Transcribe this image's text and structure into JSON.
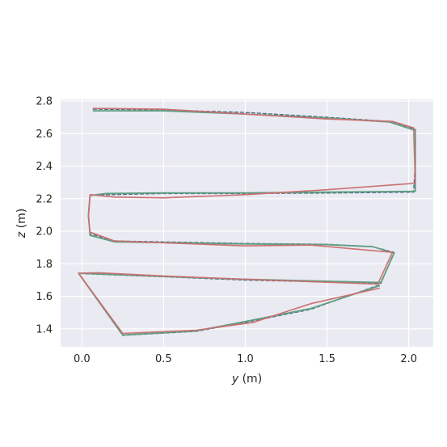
{
  "chart_data": {
    "type": "line",
    "title": "",
    "xlabel": "y (m)",
    "ylabel": "z (m)",
    "xlabel_var": "y",
    "xlabel_unit": " (m)",
    "ylabel_var": "z",
    "ylabel_unit": " (m)",
    "xlim": [
      -0.13,
      2.15
    ],
    "ylim": [
      1.29,
      2.81
    ],
    "xticks": [
      0.0,
      0.5,
      1.0,
      1.5,
      2.0
    ],
    "xtick_labels": [
      "0.0",
      "0.5",
      "1.0",
      "1.5",
      "2.0"
    ],
    "yticks": [
      1.4,
      1.6,
      1.8,
      2.0,
      2.2,
      2.4,
      2.6,
      2.8
    ],
    "ytick_labels": [
      "1.4",
      "1.6",
      "1.8",
      "2.0",
      "2.2",
      "2.4",
      "2.6",
      "2.8"
    ],
    "grid": true,
    "background": "#eaeaf2",
    "grid_color": "#ffffff",
    "series": [
      {
        "color": "#4a6f83",
        "dash": "4,3",
        "width": 1.4,
        "x": [
          0.07,
          0.5,
          1.0,
          1.5,
          1.88,
          2.04,
          2.04,
          2.03,
          1.5,
          1.0,
          0.5,
          0.05,
          0.04,
          0.05,
          0.2,
          1.0,
          1.5,
          1.78,
          1.91,
          1.83,
          1.0,
          0.5,
          -0.02,
          0.25,
          0.7,
          1.0,
          1.4,
          1.82
        ],
        "y": [
          2.75,
          2.745,
          2.73,
          2.7,
          2.675,
          2.625,
          2.43,
          2.24,
          2.235,
          2.232,
          2.232,
          2.222,
          2.1,
          1.985,
          1.94,
          1.925,
          1.92,
          1.905,
          1.87,
          1.68,
          1.7,
          1.72,
          1.74,
          1.36,
          1.385,
          1.44,
          1.52,
          1.67
        ]
      },
      {
        "color": "#5f9e82",
        "dash": "",
        "width": 1.8,
        "x": [
          0.07,
          0.5,
          1.0,
          1.5,
          1.88,
          2.04,
          2.04,
          2.04,
          1.5,
          1.0,
          0.5,
          0.15,
          0.05,
          0.04,
          0.05,
          0.2,
          1.0,
          1.5,
          1.78,
          1.91,
          1.83,
          1.0,
          0.5,
          -0.02,
          0.25,
          0.7,
          1.0,
          1.4,
          1.82
        ],
        "y": [
          2.74,
          2.74,
          2.72,
          2.695,
          2.672,
          2.62,
          2.42,
          2.245,
          2.24,
          2.236,
          2.236,
          2.232,
          2.22,
          2.1,
          1.975,
          1.935,
          1.922,
          1.918,
          1.905,
          1.865,
          1.685,
          1.705,
          1.722,
          1.742,
          1.362,
          1.388,
          1.445,
          1.525,
          1.665
        ]
      },
      {
        "color": "#cc7070",
        "dash": "",
        "width": 1.6,
        "x": [
          0.07,
          0.5,
          1.0,
          1.5,
          1.9,
          2.03,
          2.04,
          1.5,
          1.0,
          0.5,
          0.2,
          0.05,
          0.04,
          0.05,
          0.2,
          1.0,
          1.4,
          1.9,
          1.81,
          1.0,
          0.5,
          0.1,
          -0.02,
          0.25,
          0.7,
          1.05,
          1.4,
          1.82
        ],
        "y": [
          2.755,
          2.75,
          2.72,
          2.69,
          2.675,
          2.635,
          2.295,
          2.255,
          2.225,
          2.205,
          2.21,
          2.225,
          2.09,
          1.995,
          1.94,
          1.91,
          1.915,
          1.87,
          1.675,
          1.705,
          1.725,
          1.745,
          1.742,
          1.372,
          1.392,
          1.44,
          1.555,
          1.65
        ]
      }
    ]
  }
}
